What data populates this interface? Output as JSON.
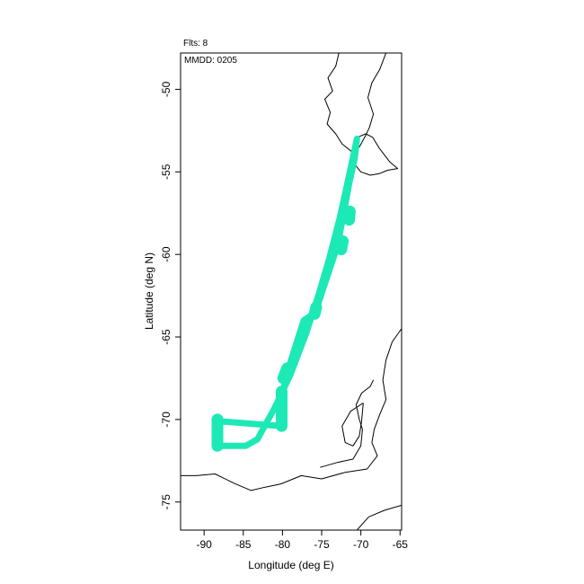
{
  "chart_data": {
    "type": "map",
    "annotations": {
      "flights": "Flts: 8",
      "date": "MMDD: 0205"
    },
    "xlabel": "Longitude (deg E)",
    "ylabel": "Latitude (deg N)",
    "xlim": [
      -93,
      -64.8
    ],
    "ylim": [
      -76.7,
      -47.8
    ],
    "xticks": [
      -90,
      -85,
      -80,
      -75,
      -70,
      -65
    ],
    "yticks": [
      -50,
      -55,
      -60,
      -65,
      -70,
      -75
    ],
    "grid": false,
    "track_color": "#1de9b6",
    "coastline_color": "#000000",
    "flight_track": {
      "outbound": [
        [
          -70.5,
          -53.0
        ],
        [
          -71.5,
          -55.2
        ],
        [
          -72.7,
          -57.8
        ],
        [
          -74.0,
          -60.2
        ],
        [
          -75.3,
          -62.3
        ],
        [
          -77.0,
          -64.8
        ],
        [
          -79.0,
          -67.3
        ],
        [
          -81.0,
          -69.3
        ],
        [
          -83.2,
          -71.2
        ],
        [
          -84.7,
          -71.6
        ],
        [
          -88.2,
          -71.6
        ],
        [
          -88.3,
          -70.1
        ],
        [
          -80.1,
          -70.4
        ],
        [
          -80.0,
          -68.5
        ],
        [
          -79.5,
          -67.3
        ],
        [
          -78.5,
          -65.8
        ],
        [
          -77.3,
          -64.0
        ],
        [
          -75.8,
          -63.5
        ],
        [
          -74.4,
          -61.5
        ],
        [
          -73.0,
          -59.5
        ],
        [
          -72.3,
          -57.8
        ],
        [
          -71.5,
          -55.7
        ],
        [
          -70.8,
          -54.2
        ],
        [
          -70.5,
          -53.0
        ]
      ],
      "thick_segments": [
        [
          [
            -88.3,
            -70.0
          ],
          [
            -88.3,
            -71.6
          ]
        ],
        [
          [
            -80.1,
            -68.3
          ],
          [
            -80.1,
            -70.4
          ]
        ],
        [
          [
            -79.9,
            -67.5
          ],
          [
            -79.4,
            -66.9
          ]
        ],
        [
          [
            -75.9,
            -63.6
          ],
          [
            -75.7,
            -63.2
          ]
        ],
        [
          [
            -72.5,
            -59.7
          ],
          [
            -72.3,
            -59.2
          ]
        ],
        [
          [
            -71.5,
            -57.9
          ],
          [
            -71.4,
            -57.4
          ]
        ]
      ]
    },
    "coastlines": {
      "south_america": [
        [
          -72.8,
          -47.8
        ],
        [
          -73.2,
          -48.6
        ],
        [
          -74.2,
          -49.3
        ],
        [
          -73.6,
          -50.1
        ],
        [
          -74.6,
          -50.6
        ],
        [
          -73.9,
          -51.4
        ],
        [
          -74.3,
          -52.1
        ],
        [
          -73.2,
          -52.7
        ],
        [
          -72.4,
          -53.3
        ],
        [
          -71.1,
          -53.8
        ],
        [
          -70.2,
          -53.5
        ],
        [
          -69.4,
          -52.8
        ],
        [
          -68.9,
          -52.3
        ],
        [
          -68.4,
          -51.5
        ],
        [
          -69.1,
          -50.5
        ],
        [
          -68.6,
          -49.6
        ],
        [
          -67.6,
          -48.8
        ],
        [
          -66.8,
          -47.8
        ]
      ],
      "tierra_del_fuego": [
        [
          -70.4,
          -52.9
        ],
        [
          -71.2,
          -54.3
        ],
        [
          -70.0,
          -55.0
        ],
        [
          -68.8,
          -55.2
        ],
        [
          -67.6,
          -55.1
        ],
        [
          -66.6,
          -54.9
        ],
        [
          -65.3,
          -54.8
        ],
        [
          -66.3,
          -54.4
        ],
        [
          -67.6,
          -53.6
        ],
        [
          -68.5,
          -52.9
        ],
        [
          -69.4,
          -52.7
        ],
        [
          -70.4,
          -52.9
        ]
      ],
      "antarctic_peninsula": [
        [
          -64.8,
          -64.5
        ],
        [
          -66.0,
          -65.3
        ],
        [
          -66.8,
          -66.4
        ],
        [
          -67.2,
          -67.6
        ],
        [
          -66.8,
          -68.8
        ],
        [
          -67.6,
          -69.7
        ],
        [
          -68.3,
          -70.6
        ],
        [
          -68.6,
          -71.4
        ],
        [
          -67.9,
          -72.2
        ],
        [
          -69.2,
          -73.0
        ],
        [
          -72.0,
          -73.2
        ],
        [
          -75.0,
          -73.6
        ],
        [
          -77.6,
          -73.4
        ],
        [
          -80.2,
          -73.9
        ],
        [
          -82.2,
          -74.1
        ],
        [
          -84.0,
          -74.3
        ],
        [
          -86.0,
          -73.9
        ],
        [
          -88.6,
          -73.3
        ],
        [
          -91.0,
          -73.4
        ],
        [
          -93.0,
          -73.4
        ]
      ],
      "ice_shelf_edge": [
        [
          -75.2,
          -72.9
        ],
        [
          -73.0,
          -72.6
        ],
        [
          -71.0,
          -72.4
        ],
        [
          -70.0,
          -71.6
        ],
        [
          -69.8,
          -70.6
        ],
        [
          -70.2,
          -70.0
        ],
        [
          -70.6,
          -69.1
        ],
        [
          -69.9,
          -68.4
        ],
        [
          -68.8,
          -68.0
        ],
        [
          -68.4,
          -67.6
        ]
      ],
      "alexander_island": [
        [
          -69.7,
          -69.0
        ],
        [
          -71.3,
          -69.5
        ],
        [
          -72.4,
          -70.4
        ],
        [
          -72.0,
          -71.4
        ],
        [
          -71.0,
          -71.6
        ],
        [
          -70.2,
          -71.0
        ],
        [
          -69.9,
          -70.1
        ],
        [
          -69.7,
          -69.0
        ]
      ],
      "south_shetlands": [
        [
          -62.3,
          -62.0
        ],
        [
          -63.2,
          -62.8
        ],
        [
          -64.1,
          -63.4
        ],
        [
          -64.6,
          -63.9
        ]
      ],
      "weddell_coast": [
        [
          -64.8,
          -75.2
        ],
        [
          -67.0,
          -75.5
        ],
        [
          -69.0,
          -75.9
        ],
        [
          -70.5,
          -76.7
        ]
      ]
    }
  }
}
